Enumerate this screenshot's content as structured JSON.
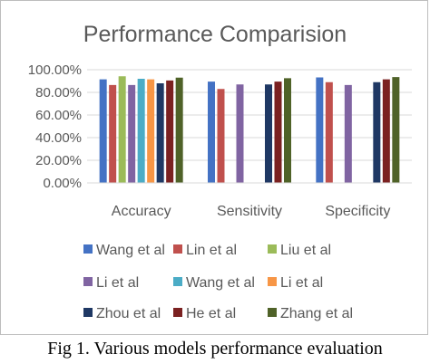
{
  "chart_data": {
    "type": "bar",
    "title": "Performance Comparision",
    "categories": [
      "Accuracy",
      "Sensitivity",
      "Specificity"
    ],
    "yticks": [
      "0.00%",
      "20.00%",
      "40.00%",
      "60.00%",
      "80.00%",
      "100.00%"
    ],
    "ylim": [
      0,
      100
    ],
    "grid": true,
    "legend_position": "bottom",
    "series": [
      {
        "name": "Wang et al",
        "color": "#4472c4",
        "values": [
          91.5,
          89.5,
          93.2
        ]
      },
      {
        "name": "Lin et al",
        "color": "#c0504d",
        "values": [
          86.5,
          83.0,
          89.0
        ]
      },
      {
        "name": "Liu et al",
        "color": "#9bbb59",
        "values": [
          94.2,
          null,
          null
        ]
      },
      {
        "name": "Li et al",
        "color": "#8064a2",
        "values": [
          86.5,
          87.0,
          86.5
        ]
      },
      {
        "name": "Wang et al",
        "color": "#4bacc6",
        "values": [
          92.0,
          null,
          null
        ]
      },
      {
        "name": "Li et al",
        "color": "#f79646",
        "values": [
          91.5,
          null,
          null
        ]
      },
      {
        "name": "Zhou et al",
        "color": "#1f3864",
        "values": [
          88.0,
          87.0,
          89.0
        ]
      },
      {
        "name": "He et al",
        "color": "#7b2121",
        "values": [
          90.5,
          89.5,
          91.5
        ]
      },
      {
        "name": "Zhang et al",
        "color": "#4f6228",
        "values": [
          93.0,
          92.5,
          93.5
        ]
      }
    ]
  },
  "caption": "Fig 1. Various models performance evaluation"
}
